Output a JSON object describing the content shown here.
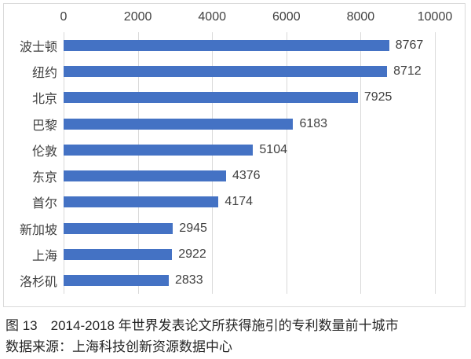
{
  "chart_data": {
    "type": "bar",
    "orientation": "horizontal",
    "title": "",
    "categories": [
      "波士顿",
      "纽约",
      "北京",
      "巴黎",
      "伦敦",
      "东京",
      "首尔",
      "新加坡",
      "上海",
      "洛杉矶"
    ],
    "values": [
      8767,
      8712,
      7925,
      6183,
      5104,
      4376,
      4174,
      2945,
      2922,
      2833
    ],
    "x_ticks": [
      0,
      2000,
      4000,
      6000,
      8000,
      10000
    ],
    "xlim": [
      0,
      10000
    ],
    "data_labels": true,
    "legend": "none",
    "grid": "vertical",
    "bar_color": "#4472C4",
    "gridline_color": "#D9D9D9",
    "label_color": "#404040",
    "frame_border_color": "#D9D9D9"
  },
  "caption": {
    "line1": "图 13　2014-2018 年世界发表论文所获得施引的专利数量前十城市",
    "line2": "数据来源：上海科技创新资源数据中心"
  }
}
